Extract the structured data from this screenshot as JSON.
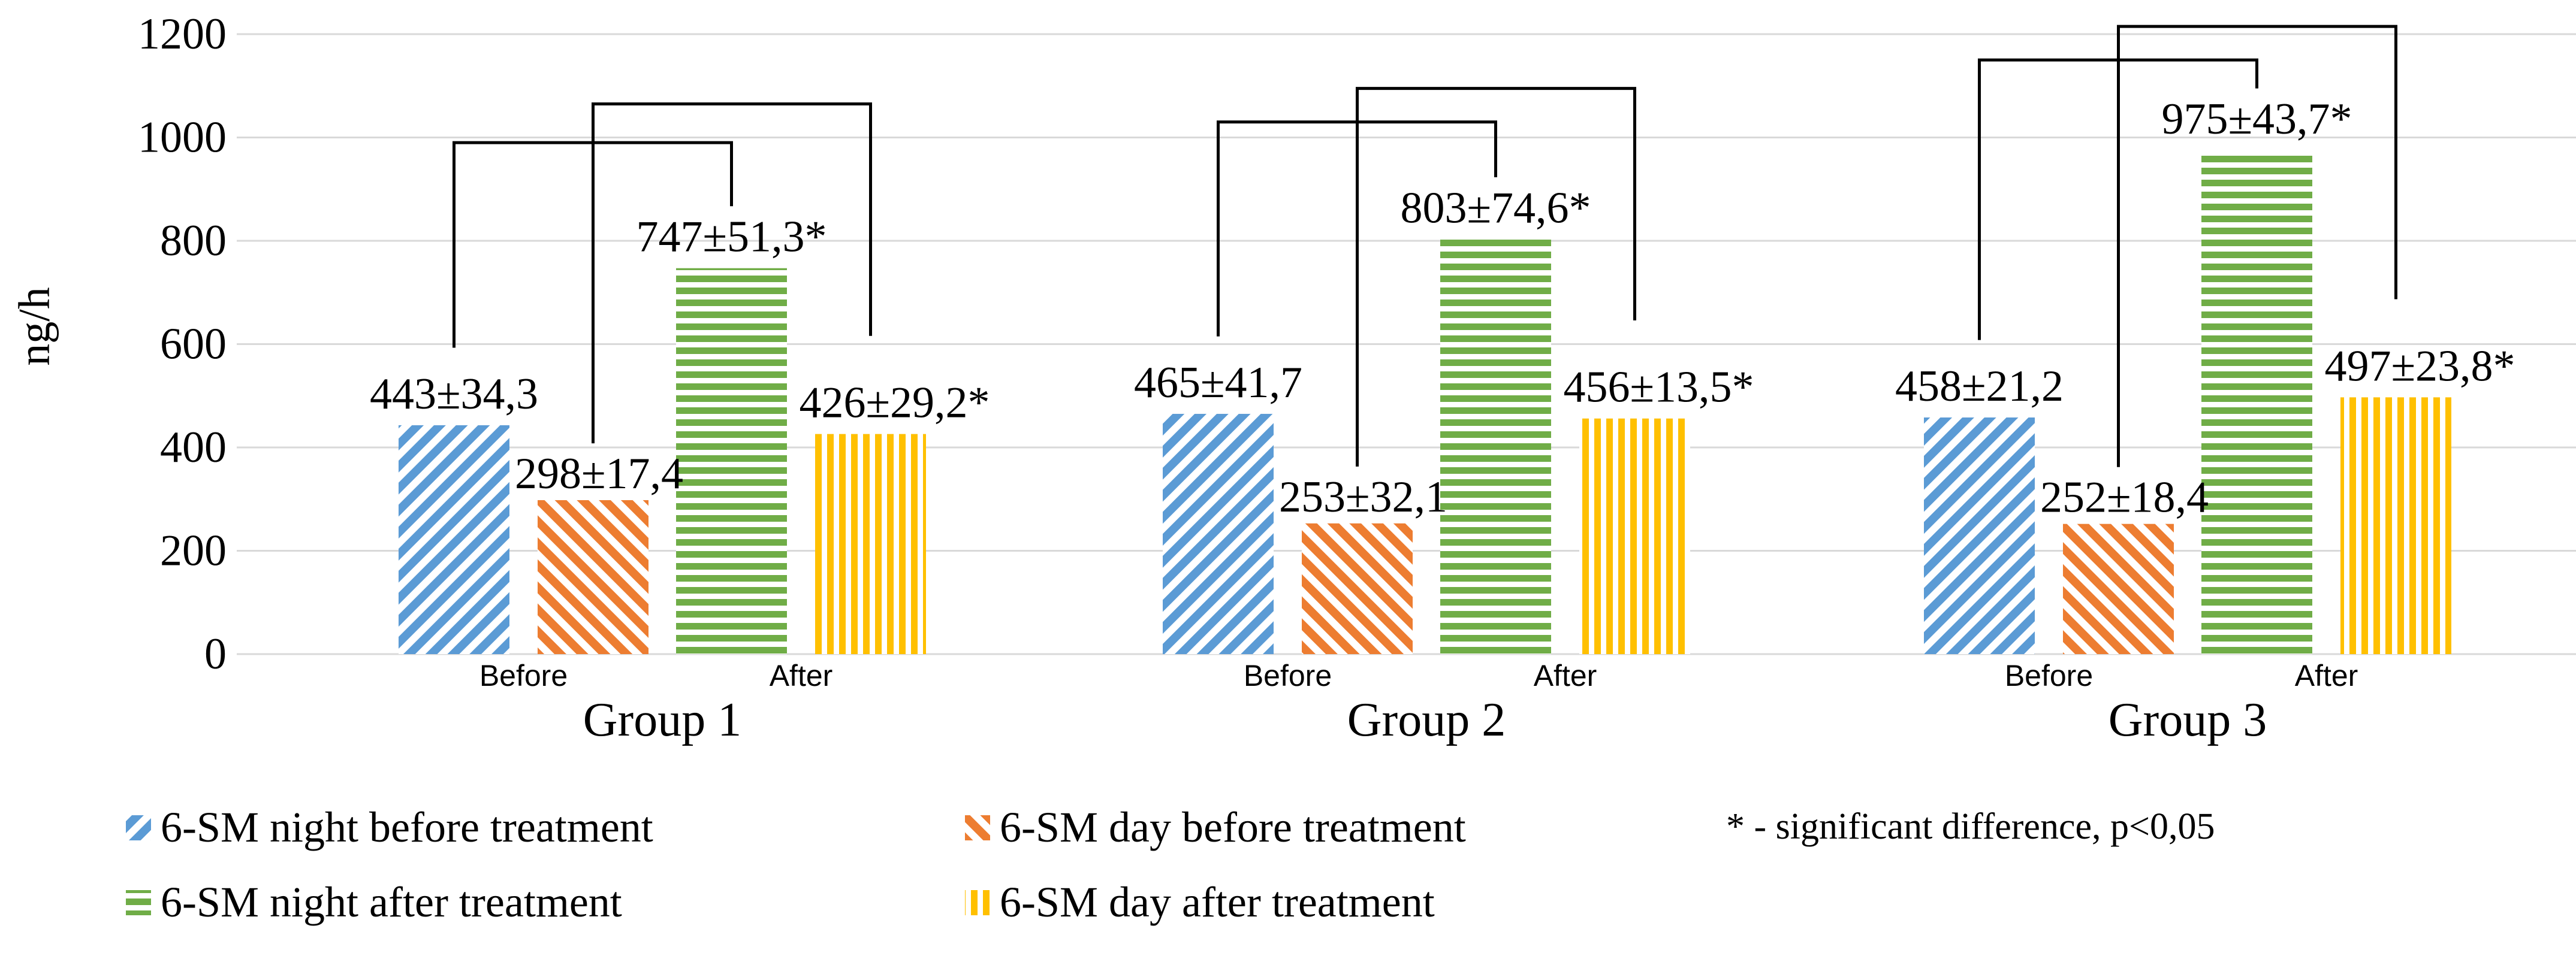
{
  "chart_data": {
    "type": "bar",
    "ylabel": "ng/h",
    "ylim": [
      0,
      1200
    ],
    "yticks": [
      0,
      200,
      400,
      600,
      800,
      1000,
      1200
    ],
    "grid": true,
    "legend_position": "bottom",
    "sublabels": [
      "Before",
      "After"
    ],
    "series": [
      {
        "name": "6-SM night before treatment",
        "color": "#5b9bd5",
        "pattern": "diagonal-up"
      },
      {
        "name": "6-SM day before treatment",
        "color": "#ed7d31",
        "pattern": "diagonal-down"
      },
      {
        "name": "6-SM night after treatment",
        "color": "#70ad47",
        "pattern": "horizontal"
      },
      {
        "name": "6-SM day after treatment",
        "color": "#ffc000",
        "pattern": "vertical"
      }
    ],
    "groups": [
      {
        "name": "Group 1",
        "values": [
          443,
          298,
          747,
          426
        ],
        "labels": [
          "443±34,3",
          "298±17,4",
          "747±51,3*",
          "426±29,2*"
        ]
      },
      {
        "name": "Group 2",
        "values": [
          465,
          253,
          803,
          456
        ],
        "labels": [
          "465±41,7",
          "253±32,1",
          "803±74,6*",
          "456±13,5*"
        ]
      },
      {
        "name": "Group 3",
        "values": [
          458,
          252,
          975,
          497
        ],
        "labels": [
          "458±21,2",
          "252±18,4",
          "975±43,7*",
          "497±23,8*"
        ]
      }
    ],
    "brackets": [
      {
        "group": 0,
        "from": 0,
        "to": 2,
        "top": 990
      },
      {
        "group": 0,
        "from": 1,
        "to": 3,
        "top": 1065
      },
      {
        "group": 1,
        "from": 0,
        "to": 2,
        "top": 1030
      },
      {
        "group": 1,
        "from": 1,
        "to": 3,
        "top": 1095
      },
      {
        "group": 2,
        "from": 0,
        "to": 2,
        "top": 1150
      },
      {
        "group": 2,
        "from": 1,
        "to": 3,
        "top": 1215
      }
    ],
    "annotation": "* - significant difference, p<0,05"
  }
}
